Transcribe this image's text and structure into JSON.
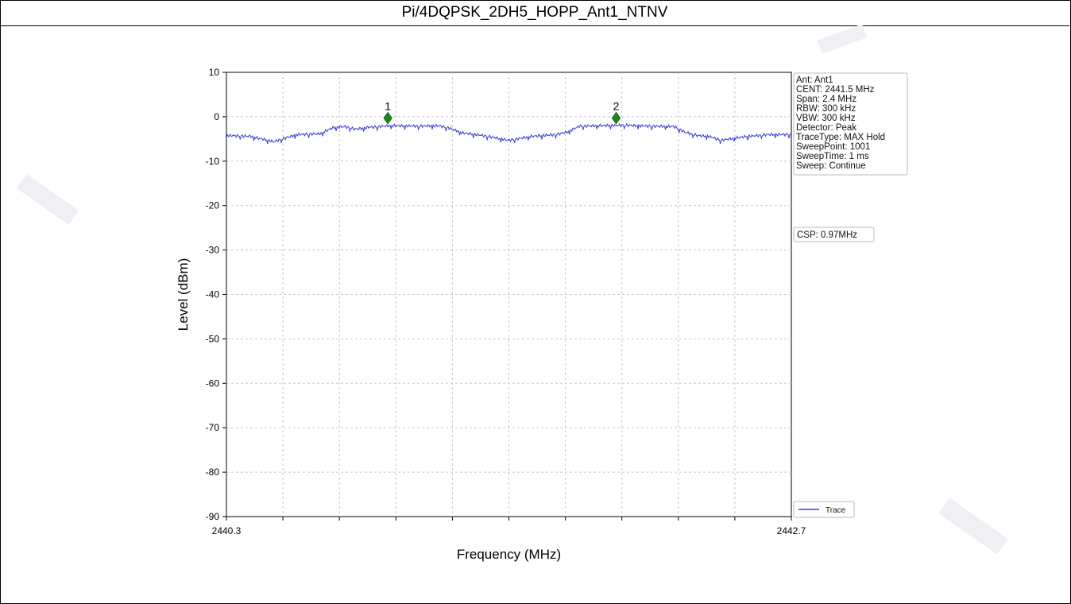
{
  "page": {
    "title": "Pi/4DQPSK_2DH5_HOPP_Ant1_NTNV"
  },
  "chart_data": {
    "type": "line",
    "xlabel": "Frequency (MHz)",
    "ylabel": "Level (dBm)",
    "xlim": [
      2440.3,
      2442.7
    ],
    "ylim": [
      -90,
      10
    ],
    "x_ticks_labeled": [
      "2440.3",
      "2442.7"
    ],
    "y_ticks": [
      10,
      0,
      -10,
      -20,
      -30,
      -40,
      -50,
      -60,
      -70,
      -80,
      -90
    ],
    "grid": true,
    "legend": {
      "position": "bottom-right",
      "entries": [
        "Trace"
      ]
    },
    "series": [
      {
        "name": "Trace",
        "color": "#3b3bd6",
        "x": [
          2440.3,
          2440.4,
          2440.45,
          2440.5,
          2440.55,
          2440.6,
          2440.7,
          2440.75,
          2440.8,
          2440.85,
          2440.9,
          2441.0,
          2441.1,
          2441.2,
          2441.25,
          2441.3,
          2441.4,
          2441.5,
          2441.6,
          2441.7,
          2441.75,
          2441.8,
          2441.9,
          2442.0,
          2442.05,
          2442.1,
          2442.2,
          2442.25,
          2442.3,
          2442.35,
          2442.4,
          2442.5,
          2442.6,
          2442.7
        ],
        "y": [
          -4.2,
          -4.4,
          -5.0,
          -5.6,
          -4.8,
          -4.0,
          -3.8,
          -2.5,
          -2.2,
          -2.8,
          -2.4,
          -2.0,
          -2.1,
          -2.0,
          -2.6,
          -3.6,
          -4.3,
          -5.3,
          -4.4,
          -4.0,
          -3.4,
          -2.1,
          -2.0,
          -1.9,
          -2.0,
          -2.1,
          -2.2,
          -3.5,
          -4.2,
          -4.4,
          -5.3,
          -4.5,
          -4.0,
          -4.0
        ]
      }
    ],
    "markers": [
      {
        "label": "1",
        "x": 2440.9858,
        "y": -0.3,
        "color": "#1a8a1a"
      },
      {
        "label": "2",
        "x": 2441.9557,
        "y": -0.3,
        "color": "#1a8a1a"
      }
    ],
    "info_box": [
      "Ant: Ant1",
      "CENT: 2441.5 MHz",
      "Span: 2.4 MHz",
      "RBW: 300 kHz",
      "VBW: 300 kHz",
      "Detector: Peak",
      "TraceType: MAX Hold",
      "SweepPoint: 1001",
      "SweepTime: 1 ms",
      "Sweep: Continue"
    ],
    "csp_box": "CSP: 0.97MHz"
  }
}
